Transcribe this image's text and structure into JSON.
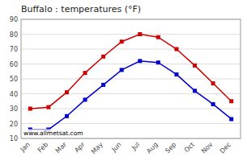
{
  "chart_data": {
    "type": "line",
    "title": "Buffalo : temperatures (°F)",
    "categories": [
      "Jan",
      "Feb",
      "Mar",
      "Apr",
      "May",
      "Jun",
      "Jul",
      "Aug",
      "Sep",
      "Oct",
      "Nov",
      "Dec"
    ],
    "series": [
      {
        "color": "#cc0000",
        "marker": "square",
        "line_style": "solid",
        "values": [
          30,
          31,
          41,
          54,
          65,
          75,
          80,
          78,
          70,
          59,
          47,
          35
        ]
      },
      {
        "color": "#0000cc",
        "marker": "square",
        "line_style": "solid",
        "values": [
          16,
          16,
          25,
          36,
          46,
          56,
          62,
          61,
          53,
          42,
          33,
          23
        ]
      }
    ],
    "ylim": [
      10,
      90
    ],
    "yticks": [
      10,
      20,
      30,
      40,
      50,
      60,
      70,
      80,
      90
    ],
    "grid": true,
    "annotation": "www.allmetsat.com"
  }
}
